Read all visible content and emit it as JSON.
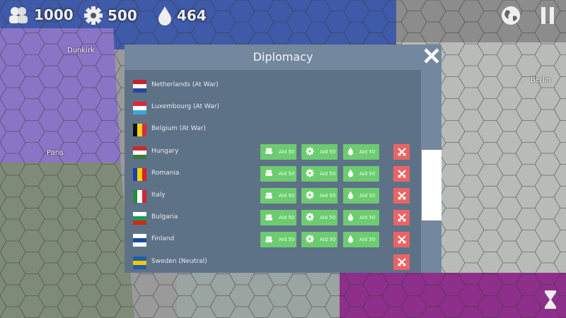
{
  "hud": {
    "manpower": "1000",
    "industry": "500",
    "oil": "464"
  },
  "map": {
    "cities": [
      "Dunkirk",
      "Paris",
      "Berlin"
    ]
  },
  "dialog": {
    "title": "Diplomacy",
    "aid_label": "Aid 50",
    "countries": [
      {
        "name": "Netherlands (At War)",
        "flag": [
          "#c8202f",
          "#ffffff",
          "#27469b"
        ],
        "aid": false,
        "war_button": false
      },
      {
        "name": "Luxembourg (At War)",
        "flag": [
          "#e0283a",
          "#ffffff",
          "#3fa3de"
        ],
        "aid": false,
        "war_button": false
      },
      {
        "name": "Belgium (At War)",
        "flag_v": [
          "#111111",
          "#f5d320",
          "#e0283a"
        ],
        "aid": false,
        "war_button": false
      },
      {
        "name": "Hungary",
        "flag": [
          "#cc2a2a",
          "#ffffff",
          "#3c7a3c"
        ],
        "aid": true,
        "war_button": true
      },
      {
        "name": "Romania",
        "flag_v": [
          "#1f3fb0",
          "#f6d400",
          "#d81e2a"
        ],
        "aid": true,
        "war_button": true
      },
      {
        "name": "Italy",
        "flag_v": [
          "#2d8a3a",
          "#ffffff",
          "#d22630"
        ],
        "aid": true,
        "war_button": true
      },
      {
        "name": "Bulgaria",
        "flag": [
          "#ffffff",
          "#169b62",
          "#d62612"
        ],
        "aid": true,
        "war_button": true
      },
      {
        "name": "Finland",
        "flag": [
          "#ffffff",
          "#1c4aa0",
          "#ffffff"
        ],
        "aid": true,
        "war_button": true
      },
      {
        "name": "Sweden (Neutral)",
        "flag": [
          "#1d5fa8",
          "#f5c800",
          "#1d5fa8"
        ],
        "aid": false,
        "war_button": true
      }
    ]
  },
  "colors": {
    "aid_green": "#6ccc6f",
    "war_red": "#e96565",
    "panel": "#73879e",
    "list_bg": "#5e7287"
  }
}
